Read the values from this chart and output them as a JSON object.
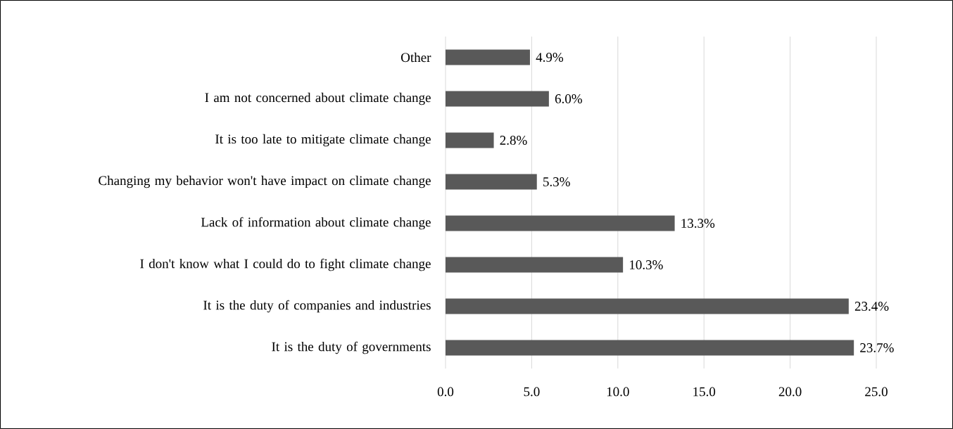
{
  "chart_data": {
    "type": "bar",
    "orientation": "horizontal",
    "categories": [
      "Other",
      "I am not concerned about climate change",
      "It is too late to mitigate climate change",
      "Changing my behavior won't have impact on climate change",
      "Lack of information about climate change",
      "I don't know what I could do to fight climate change",
      "It is the duty of companies and industries",
      "It is the duty of governments"
    ],
    "values": [
      4.9,
      6.0,
      2.8,
      5.3,
      13.3,
      10.3,
      23.4,
      23.7
    ],
    "value_labels": [
      "4.9%",
      "6.0%",
      "2.8%",
      "5.3%",
      "13.3%",
      "10.3%",
      "23.4%",
      "23.7%"
    ],
    "color": "#595959",
    "xlim": [
      0,
      25
    ],
    "xticks": [
      {
        "value": 0,
        "label": "0.0"
      },
      {
        "value": 5,
        "label": "5.0"
      },
      {
        "value": 10,
        "label": "10.0"
      },
      {
        "value": 15,
        "label": "15.0"
      },
      {
        "value": 20,
        "label": "20.0"
      },
      {
        "value": 25,
        "label": "25.0"
      }
    ],
    "grid": "x"
  }
}
